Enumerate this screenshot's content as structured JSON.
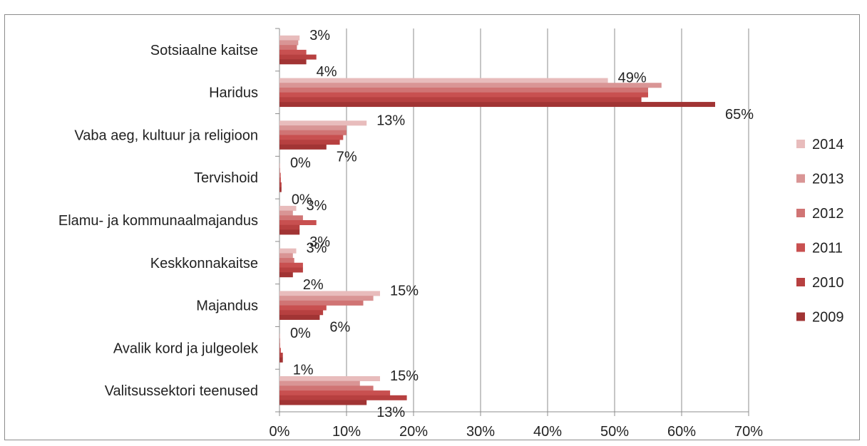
{
  "chart_data": {
    "type": "bar",
    "orientation": "horizontal",
    "categories": [
      "Sotsiaalne kaitse",
      "Haridus",
      "Vaba aeg, kultuur ja religioon",
      "Tervishoid",
      "Elamu- ja kommunaalmajandus",
      "Keskkonnakaitse",
      "Majandus",
      "Avalik kord ja julgeolek",
      "Valitsussektori teenused"
    ],
    "series": [
      {
        "name": "2014",
        "color": "#e8bcbc",
        "values": [
          3.0,
          49.0,
          13.0,
          0.1,
          2.5,
          2.5,
          15.0,
          0.1,
          15.0
        ]
      },
      {
        "name": "2013",
        "color": "#d99595",
        "values": [
          2.8,
          57.0,
          10.0,
          0.1,
          2.0,
          2.0,
          14.0,
          0.1,
          12.0
        ]
      },
      {
        "name": "2012",
        "color": "#d07474",
        "values": [
          2.6,
          55.0,
          10.0,
          0.2,
          3.5,
          2.2,
          12.5,
          0.1,
          14.0
        ]
      },
      {
        "name": "2011",
        "color": "#c85050",
        "values": [
          4.0,
          55.0,
          9.5,
          0.2,
          5.5,
          3.5,
          7.0,
          0.2,
          16.5
        ]
      },
      {
        "name": "2010",
        "color": "#b74040",
        "values": [
          5.5,
          54.0,
          9.0,
          0.3,
          3.0,
          3.5,
          6.5,
          0.5,
          19.0
        ]
      },
      {
        "name": "2009",
        "color": "#a13434",
        "values": [
          4.0,
          65.0,
          7.0,
          0.3,
          3.0,
          2.0,
          6.0,
          0.5,
          13.0
        ]
      }
    ],
    "data_labels": [
      {
        "first": "3%",
        "last": "4%"
      },
      {
        "first": "49%",
        "last": "65%"
      },
      {
        "first": "13%",
        "last": "7%"
      },
      {
        "first": "0%",
        "last": "0%"
      },
      {
        "first": "3%",
        "last": "3%"
      },
      {
        "first": "3%",
        "last": "2%"
      },
      {
        "first": "15%",
        "last": "6%"
      },
      {
        "first": "0%",
        "last": "1%"
      },
      {
        "first": "15%",
        "last": "13%"
      }
    ],
    "x_ticks": [
      "0%",
      "10%",
      "20%",
      "30%",
      "40%",
      "50%",
      "60%",
      "70%"
    ],
    "xlim": [
      0,
      70
    ],
    "grid": true,
    "legend_position": "right",
    "legend_order": [
      "2014",
      "2013",
      "2012",
      "2011",
      "2010",
      "2009"
    ]
  }
}
